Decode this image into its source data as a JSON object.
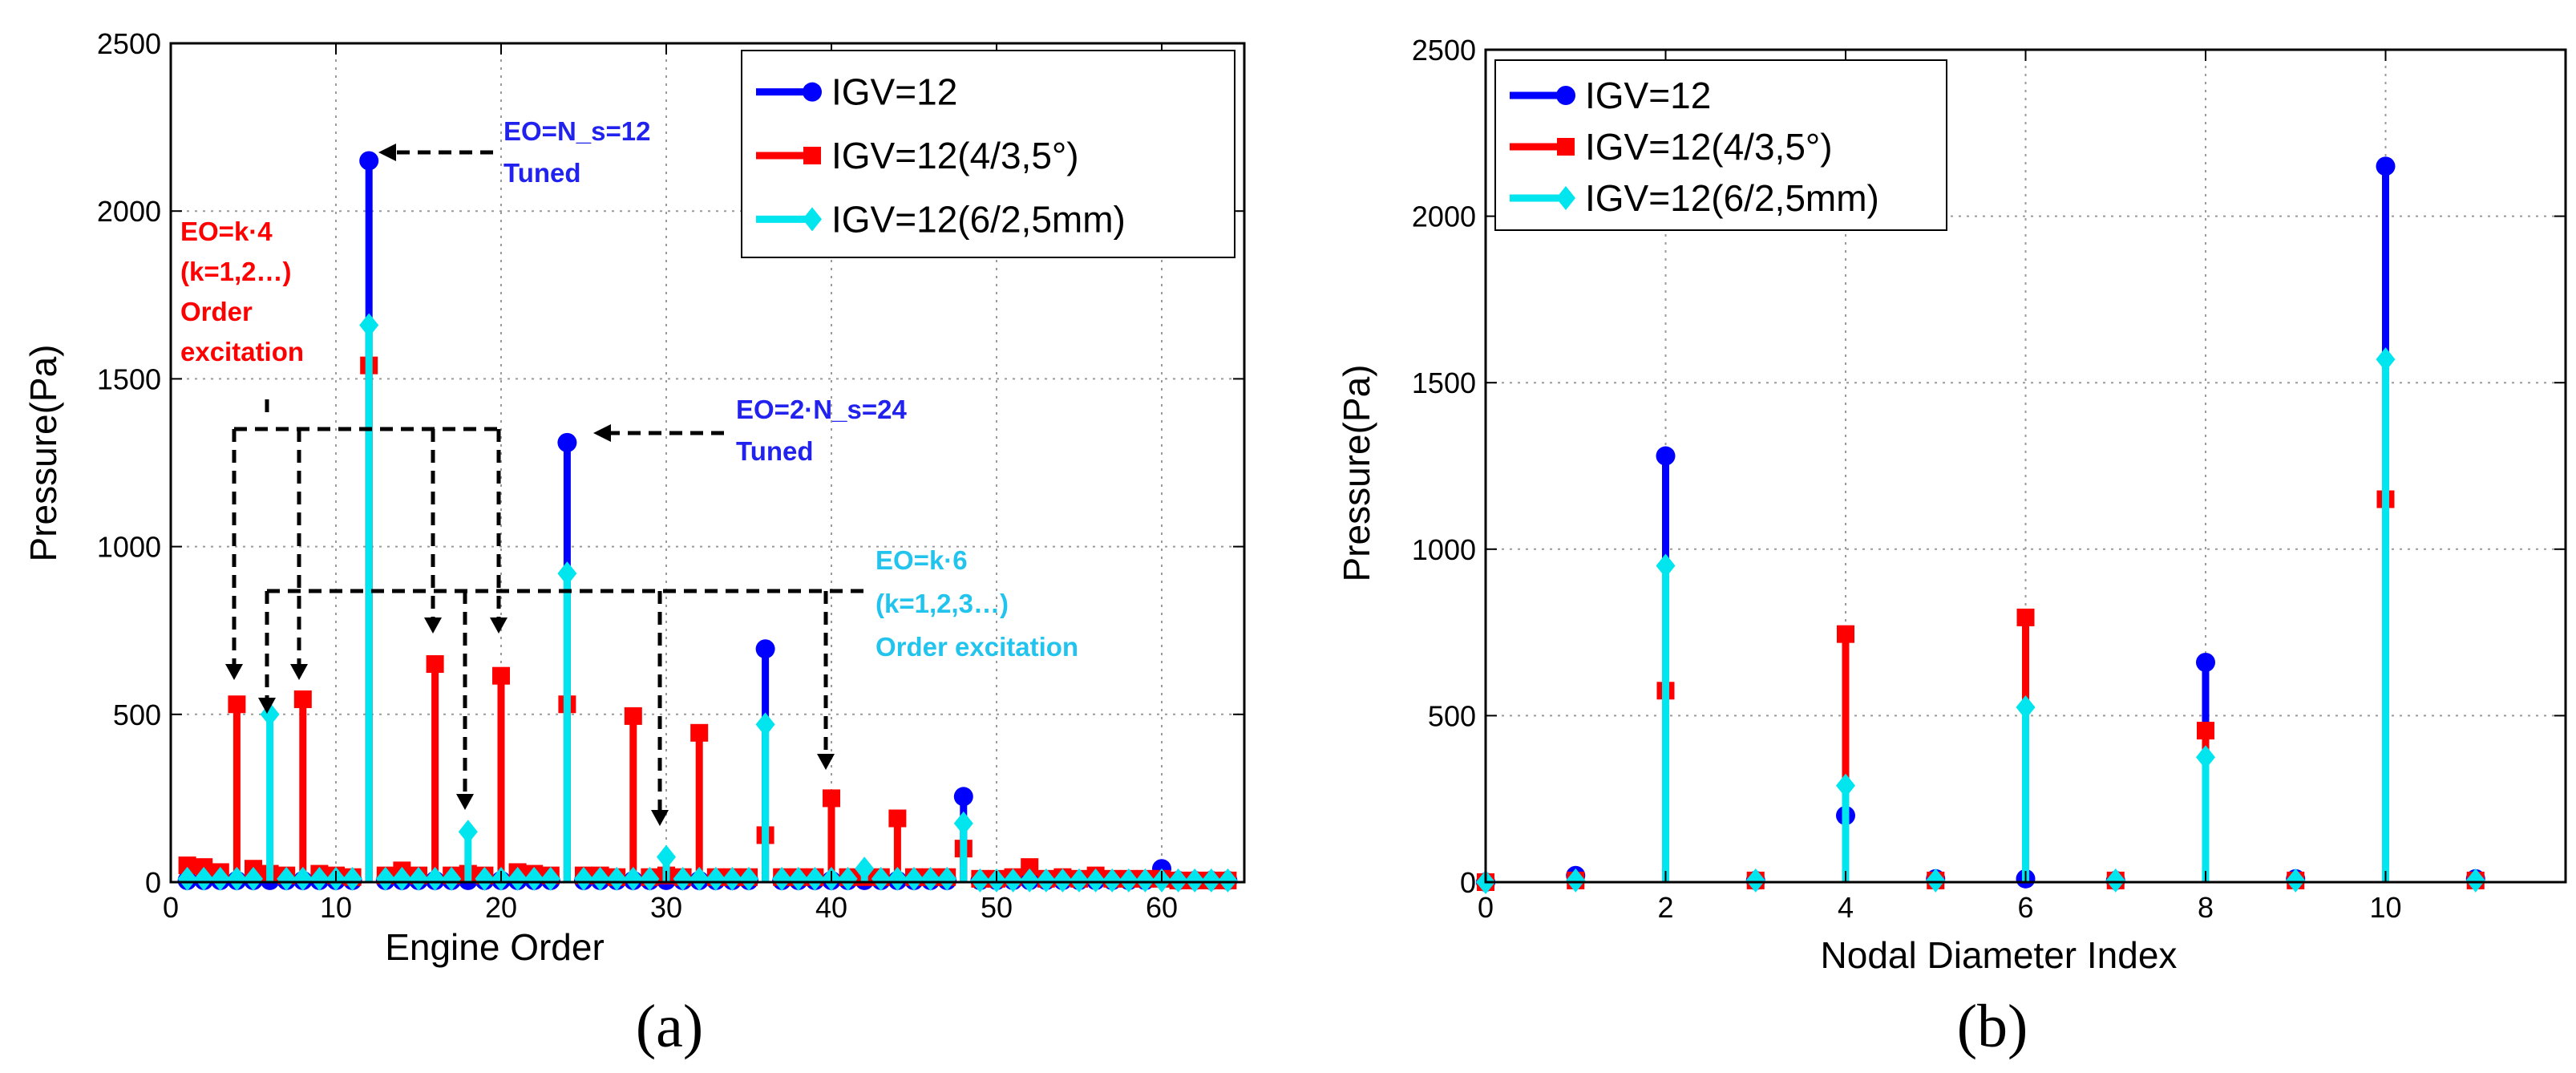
{
  "chart_data": [
    {
      "type": "stem",
      "panel_label": "(a)",
      "title": "",
      "xlabel": "Engine Order",
      "ylabel": "Pressure(Pa)",
      "xlim": [
        0,
        65
      ],
      "ylim": [
        0,
        2500
      ],
      "xticks": [
        0,
        10,
        20,
        30,
        40,
        50,
        60
      ],
      "yticks": [
        0,
        500,
        1000,
        1500,
        2000,
        2500
      ],
      "grid": true,
      "legend_position": "top-right",
      "series": [
        {
          "name": "IGV=12",
          "color": "#0000ff",
          "marker": "circle",
          "x": [
            1,
            2,
            3,
            4,
            5,
            6,
            7,
            8,
            9,
            10,
            11,
            12,
            13,
            14,
            15,
            16,
            17,
            18,
            19,
            20,
            21,
            22,
            23,
            24,
            25,
            26,
            27,
            28,
            29,
            30,
            31,
            32,
            33,
            34,
            35,
            36,
            37,
            38,
            39,
            40,
            41,
            42,
            43,
            44,
            45,
            46,
            47,
            48,
            49,
            50,
            51,
            52,
            53,
            54,
            55,
            56,
            57,
            58,
            59,
            60,
            61,
            62,
            63,
            64
          ],
          "y": [
            5,
            5,
            5,
            5,
            5,
            5,
            5,
            5,
            5,
            5,
            5,
            2150,
            5,
            5,
            5,
            5,
            5,
            5,
            5,
            5,
            5,
            5,
            5,
            1310,
            5,
            5,
            5,
            5,
            5,
            5,
            5,
            5,
            5,
            5,
            5,
            695,
            5,
            5,
            5,
            5,
            5,
            5,
            5,
            5,
            5,
            5,
            5,
            255,
            5,
            5,
            5,
            5,
            5,
            5,
            5,
            5,
            5,
            5,
            5,
            40,
            5,
            5,
            5,
            5
          ]
        },
        {
          "name": "IGV=12(4/3,5°)",
          "color": "#ff0000",
          "marker": "square",
          "x": [
            1,
            2,
            3,
            4,
            5,
            6,
            7,
            8,
            9,
            10,
            11,
            12,
            13,
            14,
            15,
            16,
            17,
            18,
            19,
            20,
            21,
            22,
            23,
            24,
            25,
            26,
            27,
            28,
            29,
            30,
            31,
            32,
            33,
            34,
            35,
            36,
            37,
            38,
            39,
            40,
            41,
            42,
            43,
            44,
            45,
            46,
            47,
            48,
            49,
            50,
            51,
            52,
            53,
            54,
            55,
            56,
            57,
            58,
            59,
            60,
            61,
            62,
            63,
            64
          ],
          "y": [
            50,
            45,
            30,
            530,
            40,
            25,
            20,
            545,
            25,
            20,
            15,
            1540,
            20,
            35,
            20,
            650,
            20,
            25,
            20,
            615,
            30,
            25,
            20,
            530,
            20,
            20,
            15,
            495,
            15,
            20,
            15,
            445,
            15,
            15,
            15,
            140,
            15,
            15,
            15,
            250,
            15,
            15,
            15,
            190,
            15,
            15,
            15,
            100,
            10,
            10,
            15,
            45,
            10,
            15,
            10,
            20,
            10,
            10,
            10,
            10,
            5,
            5,
            5,
            5
          ]
        },
        {
          "name": "IGV=12(6/2,5mm)",
          "color": "#00e5ee",
          "marker": "diamond",
          "x": [
            1,
            2,
            3,
            4,
            5,
            6,
            7,
            8,
            9,
            10,
            11,
            12,
            13,
            14,
            15,
            16,
            17,
            18,
            19,
            20,
            21,
            22,
            23,
            24,
            25,
            26,
            27,
            28,
            29,
            30,
            31,
            32,
            33,
            34,
            35,
            36,
            37,
            38,
            39,
            40,
            41,
            42,
            43,
            44,
            45,
            46,
            47,
            48,
            49,
            50,
            51,
            52,
            53,
            54,
            55,
            56,
            57,
            58,
            59,
            60,
            61,
            62,
            63,
            64
          ],
          "y": [
            10,
            10,
            10,
            10,
            10,
            500,
            10,
            10,
            10,
            10,
            10,
            1660,
            10,
            10,
            10,
            10,
            10,
            150,
            10,
            10,
            10,
            10,
            10,
            920,
            10,
            10,
            10,
            10,
            10,
            75,
            10,
            10,
            10,
            10,
            10,
            470,
            10,
            10,
            10,
            10,
            10,
            40,
            10,
            10,
            10,
            10,
            10,
            175,
            5,
            5,
            5,
            5,
            5,
            5,
            5,
            5,
            5,
            5,
            5,
            5,
            5,
            5,
            5,
            5
          ]
        }
      ],
      "annotations": [
        {
          "lines": [
            "EO=N_s=12",
            "Tuned"
          ],
          "color": "#2222ee"
        },
        {
          "lines": [
            "EO=2·N_s=24",
            "Tuned"
          ],
          "color": "#2222ee"
        },
        {
          "lines": [
            "EO=k·4",
            "(k=1,2…)",
            "Order",
            "excitation"
          ],
          "color": "#ff0000"
        },
        {
          "lines": [
            "EO=k·6",
            "(k=1,2,3…)",
            "Order excitation"
          ],
          "color": "#22c4ee"
        }
      ]
    },
    {
      "type": "stem",
      "panel_label": "(b)",
      "title": "",
      "xlabel": "Nodal Diameter Index",
      "ylabel": "Pressure(Pa)",
      "xlim": [
        0,
        12
      ],
      "ylim": [
        0,
        2500
      ],
      "xticks": [
        0,
        2,
        4,
        6,
        8,
        10
      ],
      "yticks": [
        0,
        500,
        1000,
        1500,
        2000,
        2500
      ],
      "grid": true,
      "legend_position": "top-left",
      "series": [
        {
          "name": "IGV=12",
          "color": "#0000ff",
          "marker": "circle",
          "x": [
            0,
            1,
            2,
            3,
            4,
            5,
            6,
            7,
            8,
            9,
            10,
            11
          ],
          "y": [
            0,
            20,
            1280,
            5,
            200,
            10,
            10,
            5,
            660,
            10,
            2150,
            10
          ]
        },
        {
          "name": "IGV=12(4/3,5°)",
          "color": "#ff0000",
          "marker": "square",
          "x": [
            0,
            1,
            2,
            3,
            4,
            5,
            6,
            7,
            8,
            9,
            10,
            11
          ],
          "y": [
            0,
            5,
            575,
            5,
            745,
            5,
            795,
            5,
            455,
            5,
            1150,
            5
          ]
        },
        {
          "name": "IGV=12(6/2,5mm)",
          "color": "#00e5ee",
          "marker": "diamond",
          "x": [
            0,
            1,
            2,
            3,
            4,
            5,
            6,
            7,
            8,
            9,
            10,
            11
          ],
          "y": [
            0,
            5,
            950,
            5,
            290,
            5,
            525,
            5,
            375,
            5,
            1570,
            5
          ]
        }
      ]
    }
  ]
}
